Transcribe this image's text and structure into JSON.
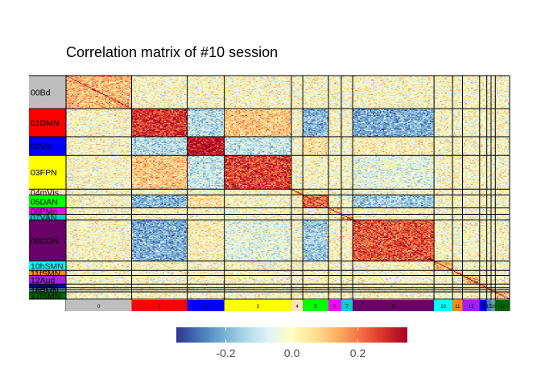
{
  "chart_data": {
    "type": "heatmap",
    "title": "Correlation matrix of #10 session",
    "colorscale": {
      "colors": [
        "#313695",
        "#4575b4",
        "#74add1",
        "#abd9e9",
        "#e0f3f8",
        "#ffffbf",
        "#fee090",
        "#fdae61",
        "#f46d43",
        "#d73027",
        "#a50026"
      ],
      "limits": [
        -0.35,
        0.35
      ],
      "ticks": [
        -0.2,
        0.0,
        0.2
      ],
      "tick_labels": [
        "-0.2",
        "0.0",
        "0.2"
      ]
    },
    "networks": [
      {
        "code": "0",
        "row_label": "00Bd",
        "col_label": "0",
        "color": "#bebebe",
        "size": 46
      },
      {
        "code": "1",
        "row_label": "01DMN",
        "col_label": "1",
        "color": "#ff0000",
        "size": 39
      },
      {
        "code": "2",
        "row_label": "02Vis",
        "col_label": "2",
        "color": "#0000ff",
        "size": 26
      },
      {
        "code": "3",
        "row_label": "03FPN",
        "col_label": "3",
        "color": "#ffff00",
        "size": 47
      },
      {
        "code": "4",
        "row_label": "04mVis",
        "col_label": "4",
        "color": "#ffe4c4",
        "size": 8
      },
      {
        "code": "5",
        "row_label": "05DAN",
        "col_label": "5",
        "color": "#00ff00",
        "size": 18
      },
      {
        "code": "6",
        "row_label": "06PMo",
        "col_label": "6",
        "color": "#ff00ff",
        "size": 9
      },
      {
        "code": "7",
        "row_label": "07VAN",
        "col_label": "7",
        "color": "#00ced1",
        "size": 8
      },
      {
        "code": "8",
        "row_label": "08CON",
        "col_label": "8",
        "color": "#6a006a",
        "size": 57
      },
      {
        "code": "10",
        "row_label": "10hSMN",
        "col_label": "10",
        "color": "#00ffff",
        "size": 13
      },
      {
        "code": "11",
        "row_label": "11fSMN",
        "col_label": "11",
        "color": "#ff8c00",
        "size": 7
      },
      {
        "code": "12",
        "row_label": "12Aud",
        "col_label": "12",
        "color": "#a020f0",
        "size": 12
      },
      {
        "code": "13",
        "row_label": "13pMN",
        "col_label": "13",
        "color": "#0000cd",
        "size": 5
      },
      {
        "code": "15",
        "row_label": "15PON",
        "col_label": "15",
        "color": "#4682b4",
        "size": 3
      },
      {
        "code": "16",
        "row_label": "16PMN",
        "col_label": "16",
        "color": "#5f9ea0",
        "size": 3
      },
      {
        "code": "17",
        "row_label": "17lSMN",
        "col_label": "17",
        "color": "#006400",
        "size": 10
      }
    ],
    "block_means": {
      "1-1": 0.28,
      "2-2": 0.32,
      "3-3": 0.26,
      "5-5": 0.22,
      "8-8": 0.24,
      "1-3": 0.1,
      "3-1": 0.1,
      "1-2": -0.12,
      "2-1": -0.12,
      "1-5": -0.18,
      "5-1": -0.18,
      "1-8": -0.2,
      "8-1": -0.2,
      "2-3": -0.1,
      "3-2": -0.1,
      "3-8": -0.05,
      "8-3": -0.05,
      "5-8": -0.15,
      "8-5": -0.15,
      "2-5": 0.05,
      "5-2": 0.05,
      "2-8": 0.02,
      "8-2": 0.02
    }
  }
}
